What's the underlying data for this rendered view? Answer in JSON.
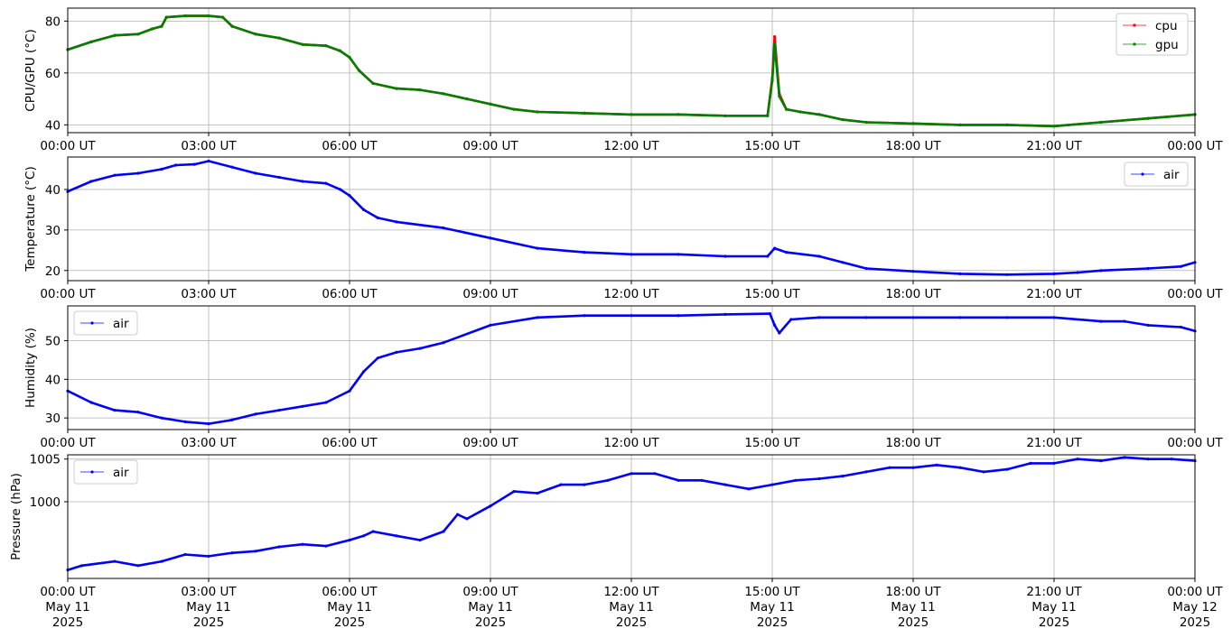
{
  "chart_data": [
    {
      "type": "line",
      "ylabel": "CPU/GPU (°C)",
      "ylim": [
        37,
        85
      ],
      "yticks": [
        40,
        60,
        80
      ],
      "xlim": [
        "2025-05-11T00:00",
        "2025-05-12T00:00"
      ],
      "xtick_labels": [
        "00:00 UT",
        "03:00 UT",
        "06:00 UT",
        "09:00 UT",
        "12:00 UT",
        "15:00 UT",
        "18:00 UT",
        "21:00 UT",
        "00:00 UT"
      ],
      "grid": true,
      "legend": "top-right",
      "series": [
        {
          "name": "cpu",
          "color": "#ff0000",
          "points": [
            [
              0,
              69
            ],
            [
              0.5,
              72
            ],
            [
              1,
              74.5
            ],
            [
              1.5,
              75
            ],
            [
              1.8,
              77
            ],
            [
              2,
              78
            ],
            [
              2.1,
              81.5
            ],
            [
              2.5,
              82
            ],
            [
              3,
              82
            ],
            [
              3.3,
              81.5
            ],
            [
              3.5,
              78
            ],
            [
              4,
              75
            ],
            [
              4.5,
              73.5
            ],
            [
              5,
              71
            ],
            [
              5.5,
              70.5
            ],
            [
              5.8,
              68.5
            ],
            [
              6,
              66
            ],
            [
              6.2,
              61
            ],
            [
              6.5,
              56
            ],
            [
              7,
              54
            ],
            [
              7.5,
              53.5
            ],
            [
              8,
              52
            ],
            [
              8.5,
              50
            ],
            [
              9,
              48
            ],
            [
              9.5,
              46
            ],
            [
              10,
              45
            ],
            [
              11,
              44.5
            ],
            [
              12,
              44
            ],
            [
              13,
              44
            ],
            [
              14,
              43.5
            ],
            [
              14.9,
              43.5
            ],
            [
              15,
              58
            ],
            [
              15.05,
              74
            ],
            [
              15.15,
              52
            ],
            [
              15.3,
              46
            ],
            [
              15.6,
              45
            ],
            [
              16,
              44
            ],
            [
              16.5,
              42
            ],
            [
              17,
              41
            ],
            [
              18,
              40.5
            ],
            [
              19,
              40
            ],
            [
              20,
              40
            ],
            [
              21,
              39.5
            ],
            [
              22,
              41
            ],
            [
              23,
              42.5
            ],
            [
              24,
              44
            ]
          ]
        },
        {
          "name": "gpu",
          "color": "#008000",
          "points": [
            [
              0,
              69
            ],
            [
              0.5,
              72
            ],
            [
              1,
              74.5
            ],
            [
              1.5,
              75
            ],
            [
              1.8,
              77
            ],
            [
              2,
              78
            ],
            [
              2.1,
              81.5
            ],
            [
              2.5,
              82
            ],
            [
              3,
              82
            ],
            [
              3.3,
              81.5
            ],
            [
              3.5,
              78
            ],
            [
              4,
              75
            ],
            [
              4.5,
              73.5
            ],
            [
              5,
              71
            ],
            [
              5.5,
              70.5
            ],
            [
              5.8,
              68.5
            ],
            [
              6,
              66
            ],
            [
              6.2,
              61
            ],
            [
              6.5,
              56
            ],
            [
              7,
              54
            ],
            [
              7.5,
              53.5
            ],
            [
              8,
              52
            ],
            [
              8.5,
              50
            ],
            [
              9,
              48
            ],
            [
              9.5,
              46
            ],
            [
              10,
              45
            ],
            [
              11,
              44.5
            ],
            [
              12,
              44
            ],
            [
              13,
              44
            ],
            [
              14,
              43.5
            ],
            [
              14.9,
              43.5
            ],
            [
              15,
              57
            ],
            [
              15.05,
              71
            ],
            [
              15.15,
              51
            ],
            [
              15.3,
              46
            ],
            [
              15.6,
              45
            ],
            [
              16,
              44
            ],
            [
              16.5,
              42
            ],
            [
              17,
              41
            ],
            [
              18,
              40.5
            ],
            [
              19,
              40
            ],
            [
              20,
              40
            ],
            [
              21,
              39.5
            ],
            [
              22,
              41
            ],
            [
              23,
              42.5
            ],
            [
              24,
              44
            ]
          ]
        }
      ]
    },
    {
      "type": "line",
      "ylabel": "Temperature (°C)",
      "ylim": [
        17.5,
        48
      ],
      "yticks": [
        20,
        30,
        40
      ],
      "xlim": [
        "2025-05-11T00:00",
        "2025-05-12T00:00"
      ],
      "xtick_labels": [
        "00:00 UT",
        "03:00 UT",
        "06:00 UT",
        "09:00 UT",
        "12:00 UT",
        "15:00 UT",
        "18:00 UT",
        "21:00 UT",
        "00:00 UT"
      ],
      "grid": true,
      "legend": "top-right",
      "series": [
        {
          "name": "air",
          "color": "#0000ff",
          "points": [
            [
              0,
              39.5
            ],
            [
              0.5,
              42
            ],
            [
              1,
              43.5
            ],
            [
              1.5,
              44
            ],
            [
              2,
              45
            ],
            [
              2.3,
              46
            ],
            [
              2.7,
              46.2
            ],
            [
              3,
              47
            ],
            [
              3.5,
              45.5
            ],
            [
              4,
              44
            ],
            [
              4.5,
              43
            ],
            [
              5,
              42
            ],
            [
              5.5,
              41.5
            ],
            [
              5.8,
              40
            ],
            [
              6,
              38.5
            ],
            [
              6.3,
              35
            ],
            [
              6.6,
              33
            ],
            [
              7,
              32
            ],
            [
              8,
              30.5
            ],
            [
              9,
              28
            ],
            [
              10,
              25.5
            ],
            [
              11,
              24.5
            ],
            [
              12,
              24
            ],
            [
              13,
              24
            ],
            [
              14,
              23.5
            ],
            [
              14.9,
              23.5
            ],
            [
              15.05,
              25.5
            ],
            [
              15.3,
              24.5
            ],
            [
              16,
              23.5
            ],
            [
              16.5,
              22
            ],
            [
              17,
              20.5
            ],
            [
              18,
              19.8
            ],
            [
              19,
              19.2
            ],
            [
              20,
              19
            ],
            [
              21,
              19.2
            ],
            [
              21.5,
              19.5
            ],
            [
              22,
              20
            ],
            [
              23,
              20.5
            ],
            [
              23.7,
              21
            ],
            [
              24,
              22
            ]
          ]
        }
      ]
    },
    {
      "type": "line",
      "ylabel": "Humidity (%)",
      "ylim": [
        27,
        59
      ],
      "yticks": [
        30,
        40,
        50
      ],
      "xlim": [
        "2025-05-11T00:00",
        "2025-05-12T00:00"
      ],
      "xtick_labels": [
        "00:00 UT",
        "03:00 UT",
        "06:00 UT",
        "09:00 UT",
        "12:00 UT",
        "15:00 UT",
        "18:00 UT",
        "21:00 UT",
        "00:00 UT"
      ],
      "grid": true,
      "legend": "top-left",
      "series": [
        {
          "name": "air",
          "color": "#0000ff",
          "points": [
            [
              0,
              37
            ],
            [
              0.5,
              34
            ],
            [
              1,
              32
            ],
            [
              1.5,
              31.5
            ],
            [
              2,
              30
            ],
            [
              2.5,
              29
            ],
            [
              3,
              28.5
            ],
            [
              3.5,
              29.5
            ],
            [
              4,
              31
            ],
            [
              4.5,
              32
            ],
            [
              5,
              33
            ],
            [
              5.5,
              34
            ],
            [
              6,
              37
            ],
            [
              6.3,
              42
            ],
            [
              6.6,
              45.5
            ],
            [
              7,
              47
            ],
            [
              7.5,
              48
            ],
            [
              8,
              49.5
            ],
            [
              9,
              54
            ],
            [
              10,
              56
            ],
            [
              11,
              56.5
            ],
            [
              12,
              56.5
            ],
            [
              13,
              56.5
            ],
            [
              14,
              56.8
            ],
            [
              14.95,
              57
            ],
            [
              15.05,
              54
            ],
            [
              15.15,
              52
            ],
            [
              15.4,
              55.5
            ],
            [
              16,
              56
            ],
            [
              17,
              56
            ],
            [
              18,
              56
            ],
            [
              19,
              56
            ],
            [
              20,
              56
            ],
            [
              21,
              56
            ],
            [
              22,
              55
            ],
            [
              22.5,
              55
            ],
            [
              23,
              54
            ],
            [
              23.7,
              53.5
            ],
            [
              24,
              52.5
            ]
          ]
        }
      ]
    },
    {
      "type": "line",
      "ylabel": "Pressure (hPa)",
      "ylim": [
        991,
        1005.5
      ],
      "yticks": [
        1000,
        1005
      ],
      "xlim": [
        "2025-05-11T00:00",
        "2025-05-12T00:00"
      ],
      "xtick_labels": [
        [
          "00:00 UT",
          "May 11",
          "2025"
        ],
        [
          "03:00 UT",
          "May 11",
          "2025"
        ],
        [
          "06:00 UT",
          "May 11",
          "2025"
        ],
        [
          "09:00 UT",
          "May 11",
          "2025"
        ],
        [
          "12:00 UT",
          "May 11",
          "2025"
        ],
        [
          "15:00 UT",
          "May 11",
          "2025"
        ],
        [
          "18:00 UT",
          "May 11",
          "2025"
        ],
        [
          "21:00 UT",
          "May 11",
          "2025"
        ],
        [
          "00:00 UT",
          "May 12",
          "2025"
        ]
      ],
      "grid": true,
      "legend": "top-left",
      "series": [
        {
          "name": "air",
          "color": "#0000ff",
          "points": [
            [
              0,
              992
            ],
            [
              0.3,
              992.5
            ],
            [
              1,
              993
            ],
            [
              1.5,
              992.5
            ],
            [
              2,
              993
            ],
            [
              2.5,
              993.8
            ],
            [
              3,
              993.6
            ],
            [
              3.5,
              994
            ],
            [
              4,
              994.2
            ],
            [
              4.5,
              994.7
            ],
            [
              5,
              995
            ],
            [
              5.5,
              994.8
            ],
            [
              6,
              995.5
            ],
            [
              6.3,
              996
            ],
            [
              6.5,
              996.5
            ],
            [
              7,
              996
            ],
            [
              7.5,
              995.5
            ],
            [
              8,
              996.5
            ],
            [
              8.3,
              998.5
            ],
            [
              8.5,
              998
            ],
            [
              9,
              999.5
            ],
            [
              9.5,
              1001.2
            ],
            [
              10,
              1001
            ],
            [
              10.5,
              1002
            ],
            [
              11,
              1002
            ],
            [
              11.5,
              1002.5
            ],
            [
              12,
              1003.3
            ],
            [
              12.5,
              1003.3
            ],
            [
              13,
              1002.5
            ],
            [
              13.5,
              1002.5
            ],
            [
              14,
              1002
            ],
            [
              14.5,
              1001.5
            ],
            [
              15,
              1002
            ],
            [
              15.5,
              1002.5
            ],
            [
              16,
              1002.7
            ],
            [
              16.5,
              1003
            ],
            [
              17,
              1003.5
            ],
            [
              17.5,
              1004
            ],
            [
              18,
              1004
            ],
            [
              18.5,
              1004.3
            ],
            [
              19,
              1004
            ],
            [
              19.5,
              1003.5
            ],
            [
              20,
              1003.8
            ],
            [
              20.5,
              1004.5
            ],
            [
              21,
              1004.5
            ],
            [
              21.5,
              1005
            ],
            [
              22,
              1004.8
            ],
            [
              22.5,
              1005.2
            ],
            [
              23,
              1005
            ],
            [
              23.5,
              1005
            ],
            [
              24,
              1004.8
            ]
          ]
        }
      ]
    }
  ]
}
